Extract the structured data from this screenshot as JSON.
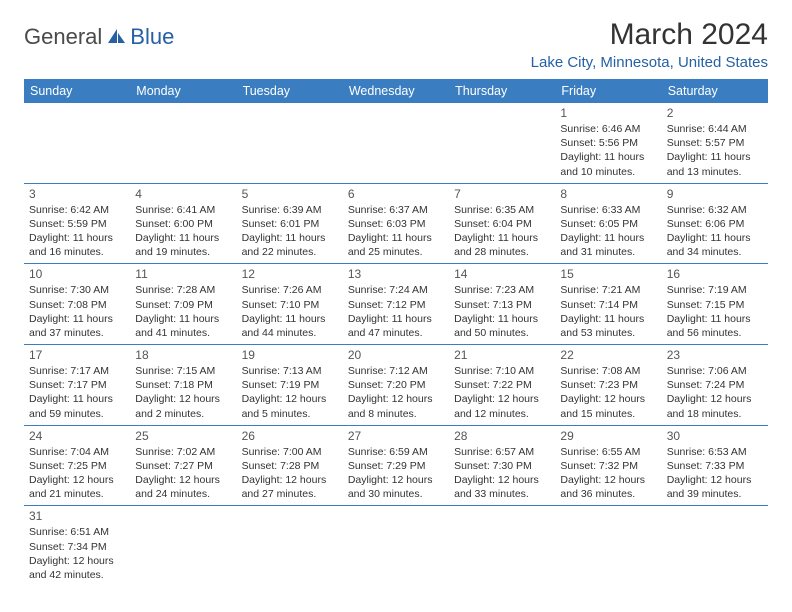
{
  "logo": {
    "part1": "General",
    "part2": "Blue"
  },
  "title": "March 2024",
  "location": "Lake City, Minnesota, United States",
  "header_bg": "#3a7ec1",
  "header_fg": "#ffffff",
  "accent_color": "#2561a3",
  "days_of_week": [
    "Sunday",
    "Monday",
    "Tuesday",
    "Wednesday",
    "Thursday",
    "Friday",
    "Saturday"
  ],
  "weeks": [
    [
      {
        "empty": true
      },
      {
        "empty": true
      },
      {
        "empty": true
      },
      {
        "empty": true
      },
      {
        "empty": true
      },
      {
        "day": "1",
        "sunrise": "Sunrise: 6:46 AM",
        "sunset": "Sunset: 5:56 PM",
        "daylight1": "Daylight: 11 hours",
        "daylight2": "and 10 minutes."
      },
      {
        "day": "2",
        "sunrise": "Sunrise: 6:44 AM",
        "sunset": "Sunset: 5:57 PM",
        "daylight1": "Daylight: 11 hours",
        "daylight2": "and 13 minutes."
      }
    ],
    [
      {
        "day": "3",
        "sunrise": "Sunrise: 6:42 AM",
        "sunset": "Sunset: 5:59 PM",
        "daylight1": "Daylight: 11 hours",
        "daylight2": "and 16 minutes."
      },
      {
        "day": "4",
        "sunrise": "Sunrise: 6:41 AM",
        "sunset": "Sunset: 6:00 PM",
        "daylight1": "Daylight: 11 hours",
        "daylight2": "and 19 minutes."
      },
      {
        "day": "5",
        "sunrise": "Sunrise: 6:39 AM",
        "sunset": "Sunset: 6:01 PM",
        "daylight1": "Daylight: 11 hours",
        "daylight2": "and 22 minutes."
      },
      {
        "day": "6",
        "sunrise": "Sunrise: 6:37 AM",
        "sunset": "Sunset: 6:03 PM",
        "daylight1": "Daylight: 11 hours",
        "daylight2": "and 25 minutes."
      },
      {
        "day": "7",
        "sunrise": "Sunrise: 6:35 AM",
        "sunset": "Sunset: 6:04 PM",
        "daylight1": "Daylight: 11 hours",
        "daylight2": "and 28 minutes."
      },
      {
        "day": "8",
        "sunrise": "Sunrise: 6:33 AM",
        "sunset": "Sunset: 6:05 PM",
        "daylight1": "Daylight: 11 hours",
        "daylight2": "and 31 minutes."
      },
      {
        "day": "9",
        "sunrise": "Sunrise: 6:32 AM",
        "sunset": "Sunset: 6:06 PM",
        "daylight1": "Daylight: 11 hours",
        "daylight2": "and 34 minutes."
      }
    ],
    [
      {
        "day": "10",
        "sunrise": "Sunrise: 7:30 AM",
        "sunset": "Sunset: 7:08 PM",
        "daylight1": "Daylight: 11 hours",
        "daylight2": "and 37 minutes."
      },
      {
        "day": "11",
        "sunrise": "Sunrise: 7:28 AM",
        "sunset": "Sunset: 7:09 PM",
        "daylight1": "Daylight: 11 hours",
        "daylight2": "and 41 minutes."
      },
      {
        "day": "12",
        "sunrise": "Sunrise: 7:26 AM",
        "sunset": "Sunset: 7:10 PM",
        "daylight1": "Daylight: 11 hours",
        "daylight2": "and 44 minutes."
      },
      {
        "day": "13",
        "sunrise": "Sunrise: 7:24 AM",
        "sunset": "Sunset: 7:12 PM",
        "daylight1": "Daylight: 11 hours",
        "daylight2": "and 47 minutes."
      },
      {
        "day": "14",
        "sunrise": "Sunrise: 7:23 AM",
        "sunset": "Sunset: 7:13 PM",
        "daylight1": "Daylight: 11 hours",
        "daylight2": "and 50 minutes."
      },
      {
        "day": "15",
        "sunrise": "Sunrise: 7:21 AM",
        "sunset": "Sunset: 7:14 PM",
        "daylight1": "Daylight: 11 hours",
        "daylight2": "and 53 minutes."
      },
      {
        "day": "16",
        "sunrise": "Sunrise: 7:19 AM",
        "sunset": "Sunset: 7:15 PM",
        "daylight1": "Daylight: 11 hours",
        "daylight2": "and 56 minutes."
      }
    ],
    [
      {
        "day": "17",
        "sunrise": "Sunrise: 7:17 AM",
        "sunset": "Sunset: 7:17 PM",
        "daylight1": "Daylight: 11 hours",
        "daylight2": "and 59 minutes."
      },
      {
        "day": "18",
        "sunrise": "Sunrise: 7:15 AM",
        "sunset": "Sunset: 7:18 PM",
        "daylight1": "Daylight: 12 hours",
        "daylight2": "and 2 minutes."
      },
      {
        "day": "19",
        "sunrise": "Sunrise: 7:13 AM",
        "sunset": "Sunset: 7:19 PM",
        "daylight1": "Daylight: 12 hours",
        "daylight2": "and 5 minutes."
      },
      {
        "day": "20",
        "sunrise": "Sunrise: 7:12 AM",
        "sunset": "Sunset: 7:20 PM",
        "daylight1": "Daylight: 12 hours",
        "daylight2": "and 8 minutes."
      },
      {
        "day": "21",
        "sunrise": "Sunrise: 7:10 AM",
        "sunset": "Sunset: 7:22 PM",
        "daylight1": "Daylight: 12 hours",
        "daylight2": "and 12 minutes."
      },
      {
        "day": "22",
        "sunrise": "Sunrise: 7:08 AM",
        "sunset": "Sunset: 7:23 PM",
        "daylight1": "Daylight: 12 hours",
        "daylight2": "and 15 minutes."
      },
      {
        "day": "23",
        "sunrise": "Sunrise: 7:06 AM",
        "sunset": "Sunset: 7:24 PM",
        "daylight1": "Daylight: 12 hours",
        "daylight2": "and 18 minutes."
      }
    ],
    [
      {
        "day": "24",
        "sunrise": "Sunrise: 7:04 AM",
        "sunset": "Sunset: 7:25 PM",
        "daylight1": "Daylight: 12 hours",
        "daylight2": "and 21 minutes."
      },
      {
        "day": "25",
        "sunrise": "Sunrise: 7:02 AM",
        "sunset": "Sunset: 7:27 PM",
        "daylight1": "Daylight: 12 hours",
        "daylight2": "and 24 minutes."
      },
      {
        "day": "26",
        "sunrise": "Sunrise: 7:00 AM",
        "sunset": "Sunset: 7:28 PM",
        "daylight1": "Daylight: 12 hours",
        "daylight2": "and 27 minutes."
      },
      {
        "day": "27",
        "sunrise": "Sunrise: 6:59 AM",
        "sunset": "Sunset: 7:29 PM",
        "daylight1": "Daylight: 12 hours",
        "daylight2": "and 30 minutes."
      },
      {
        "day": "28",
        "sunrise": "Sunrise: 6:57 AM",
        "sunset": "Sunset: 7:30 PM",
        "daylight1": "Daylight: 12 hours",
        "daylight2": "and 33 minutes."
      },
      {
        "day": "29",
        "sunrise": "Sunrise: 6:55 AM",
        "sunset": "Sunset: 7:32 PM",
        "daylight1": "Daylight: 12 hours",
        "daylight2": "and 36 minutes."
      },
      {
        "day": "30",
        "sunrise": "Sunrise: 6:53 AM",
        "sunset": "Sunset: 7:33 PM",
        "daylight1": "Daylight: 12 hours",
        "daylight2": "and 39 minutes."
      }
    ],
    [
      {
        "day": "31",
        "sunrise": "Sunrise: 6:51 AM",
        "sunset": "Sunset: 7:34 PM",
        "daylight1": "Daylight: 12 hours",
        "daylight2": "and 42 minutes."
      },
      {
        "empty": true
      },
      {
        "empty": true
      },
      {
        "empty": true
      },
      {
        "empty": true
      },
      {
        "empty": true
      },
      {
        "empty": true
      }
    ]
  ]
}
